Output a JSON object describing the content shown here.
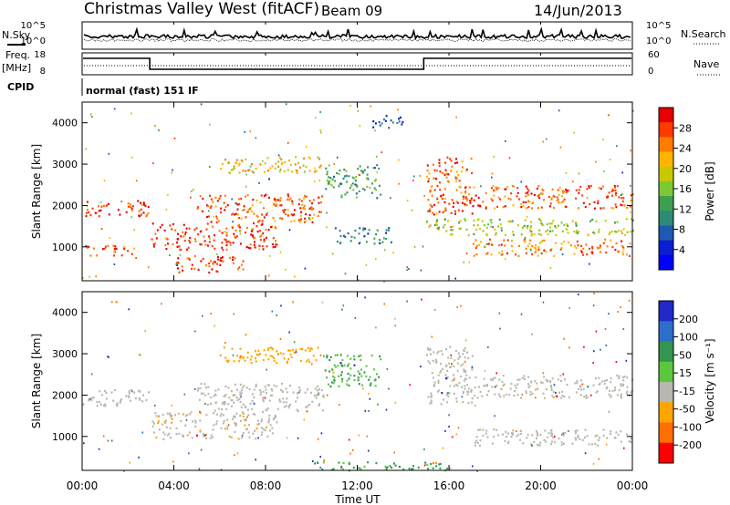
{
  "header": {
    "station": "Christmas Valley West (fitACF)",
    "beam": "Beam 09",
    "date": "14/Jun/2013"
  },
  "strip": {
    "nsky_label": "N.Sky",
    "nsearch_label": "N.Search",
    "freq_label_1": "Freq.",
    "freq_label_2": "[MHz]",
    "nave_label": "Nave",
    "cpid_label": "CPID",
    "cpid_text": "normal (fast) 151 IF",
    "noise_ticks_left": [
      "10^5",
      "10^0"
    ],
    "noise_ticks_right": [
      "10^5",
      "10^0"
    ],
    "freq_ticks": [
      "18",
      "8"
    ],
    "nave_ticks": [
      "60",
      "0"
    ]
  },
  "axes": {
    "ylabel": "Slant Range [km]",
    "xlabel": "Time UT",
    "x_ticks": [
      "00:00",
      "04:00",
      "08:00",
      "12:00",
      "16:00",
      "20:00",
      "00:00"
    ],
    "y_ticks": [
      "1000",
      "2000",
      "3000",
      "4000"
    ]
  },
  "colorbars": {
    "power": {
      "label": "Power [dB]",
      "ticks": [
        "28",
        "24",
        "20",
        "16",
        "12",
        "8",
        "4"
      ],
      "colors": [
        "#e80000",
        "#ff3a00",
        "#ff7c00",
        "#ffb400",
        "#c8c800",
        "#7cc832",
        "#3ca050",
        "#2d8a78",
        "#1e5ab4",
        "#0a1ed2",
        "#0000ff"
      ]
    },
    "velocity": {
      "label": "Velocity [m s⁻¹]",
      "ticks": [
        "200",
        "100",
        "50",
        "15",
        "-15",
        "-50",
        "-100",
        "-200"
      ],
      "colors": [
        "#2028c8",
        "#2d6ec8",
        "#329650",
        "#5ac83c",
        "#b8b8b0",
        "#ffa500",
        "#ff6e00",
        "#ff0000"
      ]
    }
  },
  "chart_data": [
    {
      "type": "heatmap",
      "title": "Power",
      "xlabel": "Time UT",
      "ylabel": "Slant Range [km]",
      "xlim_hours": [
        0,
        24
      ],
      "ylim": [
        180,
        4500
      ],
      "colorbar": "Power [dB]",
      "colorbar_range": [
        0,
        30
      ],
      "echo_bands": [
        {
          "t0": 0.1,
          "t1": 2.9,
          "r0": 1750,
          "r1": 2150,
          "dB": 28
        },
        {
          "t0": 0.1,
          "t1": 2.5,
          "r0": 800,
          "r1": 1050,
          "dB": 26
        },
        {
          "t0": 3.0,
          "t1": 8.5,
          "r0": 950,
          "r1": 1600,
          "dB": 28
        },
        {
          "t0": 5.0,
          "t1": 10.5,
          "r0": 1600,
          "r1": 2300,
          "dB": 26
        },
        {
          "t0": 6.0,
          "t1": 10.5,
          "r0": 2800,
          "r1": 3200,
          "dB": 20
        },
        {
          "t0": 4.0,
          "t1": 7.0,
          "r0": 400,
          "r1": 800,
          "dB": 27
        },
        {
          "t0": 10.5,
          "t1": 13.0,
          "r0": 2200,
          "r1": 3000,
          "dB": 12
        },
        {
          "t0": 11.0,
          "t1": 13.5,
          "r0": 1100,
          "r1": 1500,
          "dB": 8
        },
        {
          "t0": 12.5,
          "t1": 14.0,
          "r0": 3900,
          "r1": 4200,
          "dB": 6
        },
        {
          "t0": 15.0,
          "t1": 17.0,
          "r0": 1800,
          "r1": 3200,
          "dB": 26
        },
        {
          "t0": 16.5,
          "t1": 24.0,
          "r0": 1950,
          "r1": 2500,
          "dB": 26
        },
        {
          "t0": 17.0,
          "t1": 24.0,
          "r0": 800,
          "r1": 1200,
          "dB": 24
        },
        {
          "t0": 15.0,
          "t1": 24.0,
          "r0": 1300,
          "r1": 1700,
          "dB": 16
        }
      ]
    },
    {
      "type": "heatmap",
      "title": "Velocity",
      "xlabel": "Time UT",
      "ylabel": "Slant Range [km]",
      "xlim_hours": [
        0,
        24
      ],
      "ylim": [
        180,
        4500
      ],
      "colorbar": "Velocity [m s⁻¹]",
      "colorbar_range": [
        -200,
        200
      ],
      "echo_bands": [
        {
          "t0": 0.1,
          "t1": 2.9,
          "r0": 1750,
          "r1": 2150,
          "v": 0
        },
        {
          "t0": 3.0,
          "t1": 8.5,
          "r0": 950,
          "r1": 1600,
          "v": -5
        },
        {
          "t0": 5.0,
          "t1": 10.5,
          "r0": 1600,
          "r1": 2300,
          "v": 0
        },
        {
          "t0": 6.0,
          "t1": 10.5,
          "r0": 2800,
          "r1": 3200,
          "v": -40
        },
        {
          "t0": 10.5,
          "t1": 13.0,
          "r0": 2200,
          "r1": 3000,
          "v": 30
        },
        {
          "t0": 15.0,
          "t1": 17.0,
          "r0": 1800,
          "r1": 3200,
          "v": 0
        },
        {
          "t0": 16.5,
          "t1": 24.0,
          "r0": 1950,
          "r1": 2500,
          "v": 0
        },
        {
          "t0": 17.0,
          "t1": 24.0,
          "r0": 800,
          "r1": 1200,
          "v": 0
        },
        {
          "t0": 10.0,
          "t1": 16.0,
          "r0": 200,
          "r1": 400,
          "v": 40
        }
      ]
    }
  ]
}
